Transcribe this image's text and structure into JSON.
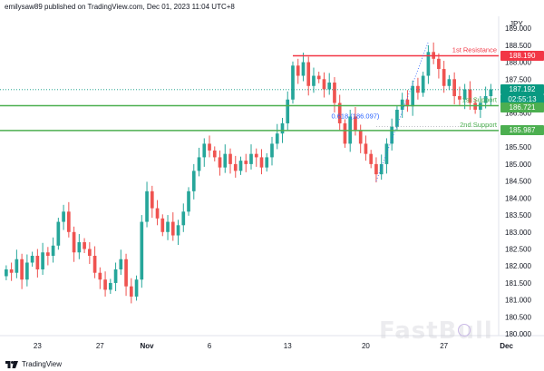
{
  "header": {
    "text": "emilysaw89 published on TradingView.com, Dec 01, 2023 11:04 UTC+8"
  },
  "footer": {
    "brand": "TradingView"
  },
  "watermark": {
    "text": "FastBull"
  },
  "colors": {
    "up": "#26a69a",
    "down": "#ef5350",
    "resistance": "#f23645",
    "support": "#4caf50",
    "last": "#089981",
    "fib": "#2962ff"
  },
  "chart_data": {
    "type": "candlestick",
    "currency": "JPY",
    "yticks": [
      189.0,
      188.5,
      188.0,
      187.5,
      187.0,
      186.5,
      186.0,
      185.5,
      185.0,
      184.5,
      184.0,
      183.5,
      183.0,
      182.5,
      182.0,
      181.5,
      181.0,
      180.5,
      180.0
    ],
    "xticks": [
      {
        "label": "23",
        "index": 6
      },
      {
        "label": "27",
        "index": 18
      },
      {
        "label": "Nov",
        "index": 27
      },
      {
        "label": "6",
        "index": 39
      },
      {
        "label": "13",
        "index": 54
      },
      {
        "label": "20",
        "index": 69
      },
      {
        "label": "27",
        "index": 84
      },
      {
        "label": "Dec",
        "index": 96
      }
    ],
    "lines": {
      "resistance": {
        "label": "1st Resistance",
        "price": 188.19
      },
      "support1": {
        "label": "1st Support",
        "price": 186.721
      },
      "support2": {
        "label": "2nd Support",
        "price": 185.987
      },
      "last": {
        "price": 187.192,
        "countdown": "02:55:13"
      }
    },
    "fib_label": "0.618 (186.097)",
    "closes": [
      181.9,
      181.8,
      182.2,
      181.6,
      182.1,
      182.3,
      181.9,
      182.4,
      182.3,
      182.6,
      183.3,
      183.6,
      183.0,
      182.4,
      182.7,
      182.5,
      182.3,
      181.8,
      181.6,
      181.3,
      181.5,
      181.9,
      182.2,
      181.4,
      181.1,
      181.6,
      183.3,
      184.2,
      183.7,
      183.4,
      183.0,
      183.3,
      182.9,
      183.2,
      183.6,
      184.2,
      184.8,
      185.2,
      185.6,
      185.4,
      185.2,
      184.9,
      185.3,
      185.0,
      184.8,
      185.1,
      185.0,
      185.3,
      185.2,
      184.9,
      185.2,
      185.6,
      185.9,
      186.2,
      186.9,
      187.9,
      187.6,
      188.0,
      187.3,
      187.6,
      187.5,
      187.2,
      187.4,
      186.8,
      186.2,
      185.6,
      186.4,
      186.0,
      185.6,
      185.3,
      185.0,
      184.7,
      185.0,
      185.6,
      186.1,
      186.6,
      186.9,
      186.7,
      187.3,
      187.1,
      187.6,
      188.3,
      188.1,
      187.8,
      187.3,
      187.5,
      187.0,
      186.9,
      187.2,
      186.8,
      186.6,
      186.8,
      187.0,
      187.2
    ]
  }
}
